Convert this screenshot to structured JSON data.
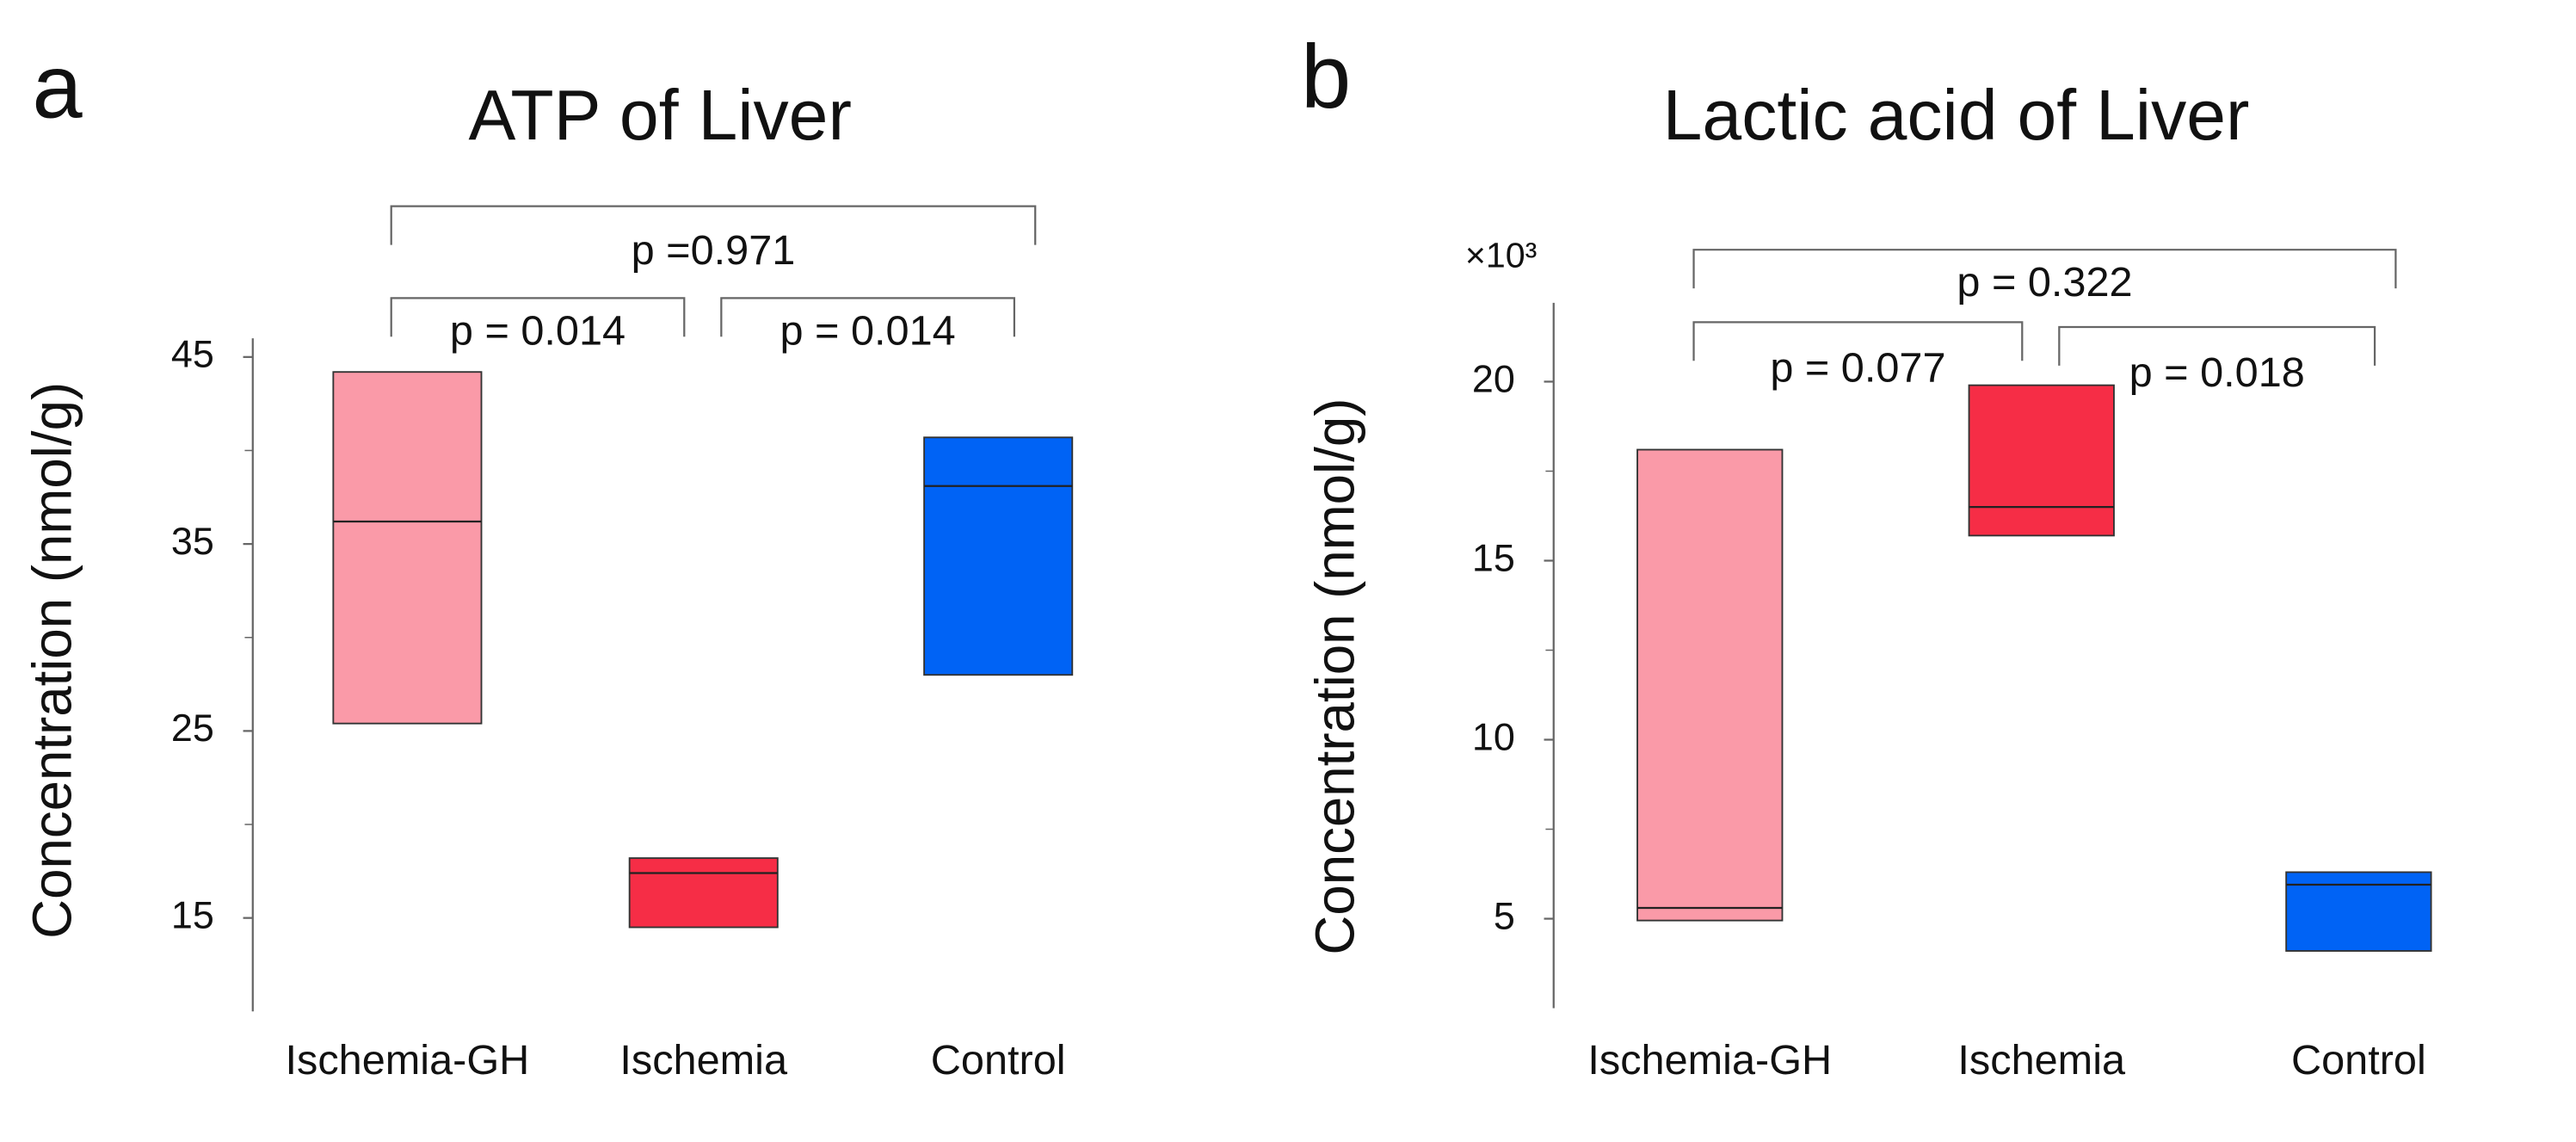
{
  "chart_data": [
    {
      "type": "box",
      "panel": "a",
      "title": "ATP of Liver",
      "y_label": "Concentration (nmol/g)",
      "categories": [
        "Ischemia-GH",
        "Ischemia",
        "Control"
      ],
      "colors": [
        "#fa9aa8",
        "#f62d46",
        "#0063f5"
      ],
      "high": [
        44.2,
        18.2,
        40.7
      ],
      "median": [
        36.2,
        17.4,
        38.1
      ],
      "low": [
        25.4,
        14.5,
        28.0
      ],
      "ylim": [
        10,
        46
      ],
      "yticks": [
        15,
        25,
        35,
        45
      ],
      "yminorticks": [
        20,
        30,
        40
      ],
      "comparisons": [
        {
          "groups": [
            "Ischemia-GH",
            "Control"
          ],
          "label": "p =0.971"
        },
        {
          "groups": [
            "Ischemia-GH",
            "Ischemia"
          ],
          "label": "p = 0.014"
        },
        {
          "groups": [
            "Ischemia",
            "Control"
          ],
          "label": "p = 0.014"
        }
      ]
    },
    {
      "type": "box",
      "panel": "b",
      "title": "Lactic acid of Liver",
      "y_label": "Concentration (nmol/g)",
      "y_multiplier": "×10³",
      "categories": [
        "Ischemia-GH",
        "Ischemia",
        "Control"
      ],
      "colors": [
        "#fa9aa8",
        "#f62d46",
        "#0063f5"
      ],
      "high": [
        18.1,
        19.9,
        6.3
      ],
      "median": [
        5.3,
        16.5,
        5.95
      ],
      "low": [
        4.95,
        15.7,
        4.1
      ],
      "ylim": [
        2.5,
        22.2
      ],
      "yticks": [
        5,
        10,
        15,
        20
      ],
      "yminorticks": [
        7.5,
        12.5,
        17.5
      ],
      "comparisons": [
        {
          "groups": [
            "Ischemia-GH",
            "Control"
          ],
          "label": "p = 0.322"
        },
        {
          "groups": [
            "Ischemia-GH",
            "Ischemia"
          ],
          "label": "p = 0.077"
        },
        {
          "groups": [
            "Ischemia",
            "Control"
          ],
          "label": "p = 0.018"
        }
      ]
    }
  ]
}
